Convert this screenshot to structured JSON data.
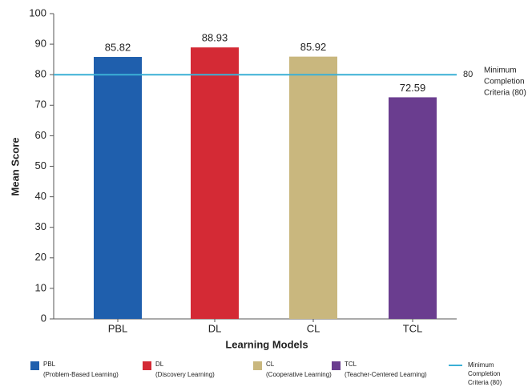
{
  "chart_data": {
    "type": "bar",
    "categories": [
      "PBL",
      "DL",
      "CL",
      "TCL"
    ],
    "values": [
      85.82,
      88.93,
      85.92,
      72.59
    ],
    "colors": [
      "#1f5fad",
      "#d42a35",
      "#c9b77e",
      "#6a3d8f"
    ],
    "ylim": [
      0,
      100
    ],
    "yticks": [
      0,
      10,
      20,
      30,
      40,
      50,
      60,
      70,
      80,
      90,
      100
    ],
    "x_label": "Learning Models",
    "y_label": "Mean Score",
    "reference_line": {
      "value": 80,
      "color": "#3bb0d6",
      "annotation_lines": [
        "Minimum",
        "Completion",
        "Criteria (80)"
      ]
    },
    "legend": [
      {
        "label": "PBL",
        "description": "(Problem-Based Learning)"
      },
      {
        "label": "DL",
        "description": "(Discovery Learning)"
      },
      {
        "label": "CL",
        "description": "(Cooperative Learning)"
      },
      {
        "label": "TCL",
        "description": "(Teacher-Centered Learning)"
      }
    ],
    "legend_reference_lines": [
      "Minimum",
      "Completion",
      "Criteria (80)"
    ]
  }
}
